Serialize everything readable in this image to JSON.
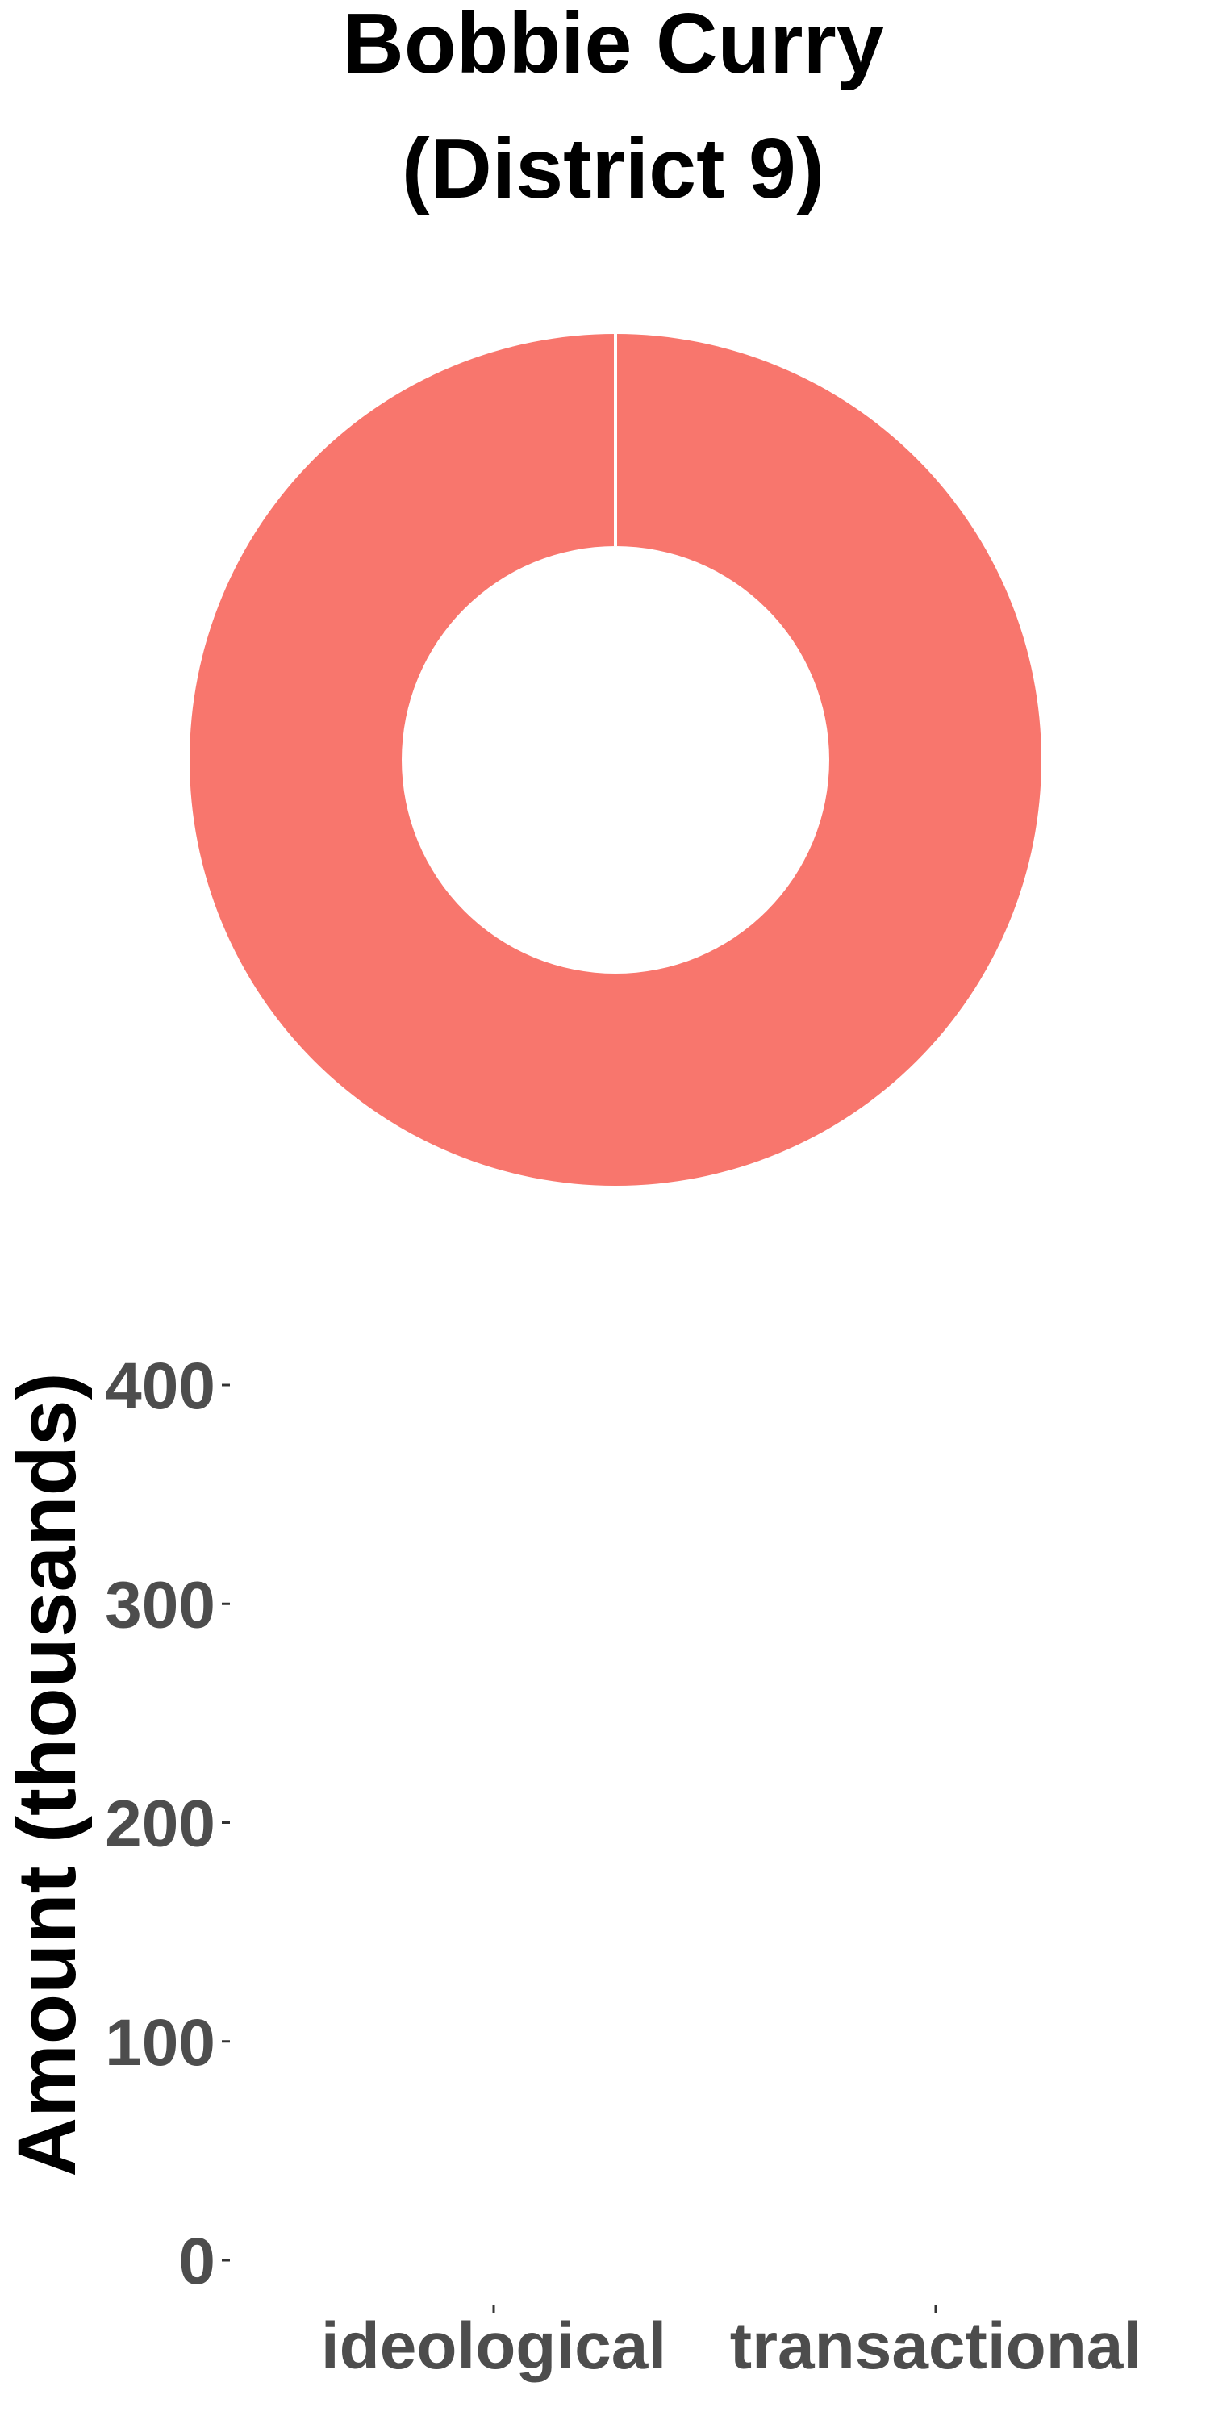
{
  "chart_data": [
    {
      "type": "pie",
      "title_lines": [
        "Bobbie Curry",
        "(District 9)"
      ],
      "donut": true,
      "slices": [
        {
          "category": "ideological",
          "value": 100,
          "color": "#F8766D"
        },
        {
          "category": "transactional",
          "value": 0,
          "color": "#00BFC4"
        }
      ]
    },
    {
      "type": "bar",
      "categories": [
        "ideological",
        "transactional"
      ],
      "values": [
        0,
        0
      ],
      "ylabel": "Amount (thousands)",
      "ylim": [
        0,
        400
      ],
      "yticks": [
        "0",
        "100",
        "200",
        "300",
        "400"
      ],
      "grid": false
    }
  ]
}
